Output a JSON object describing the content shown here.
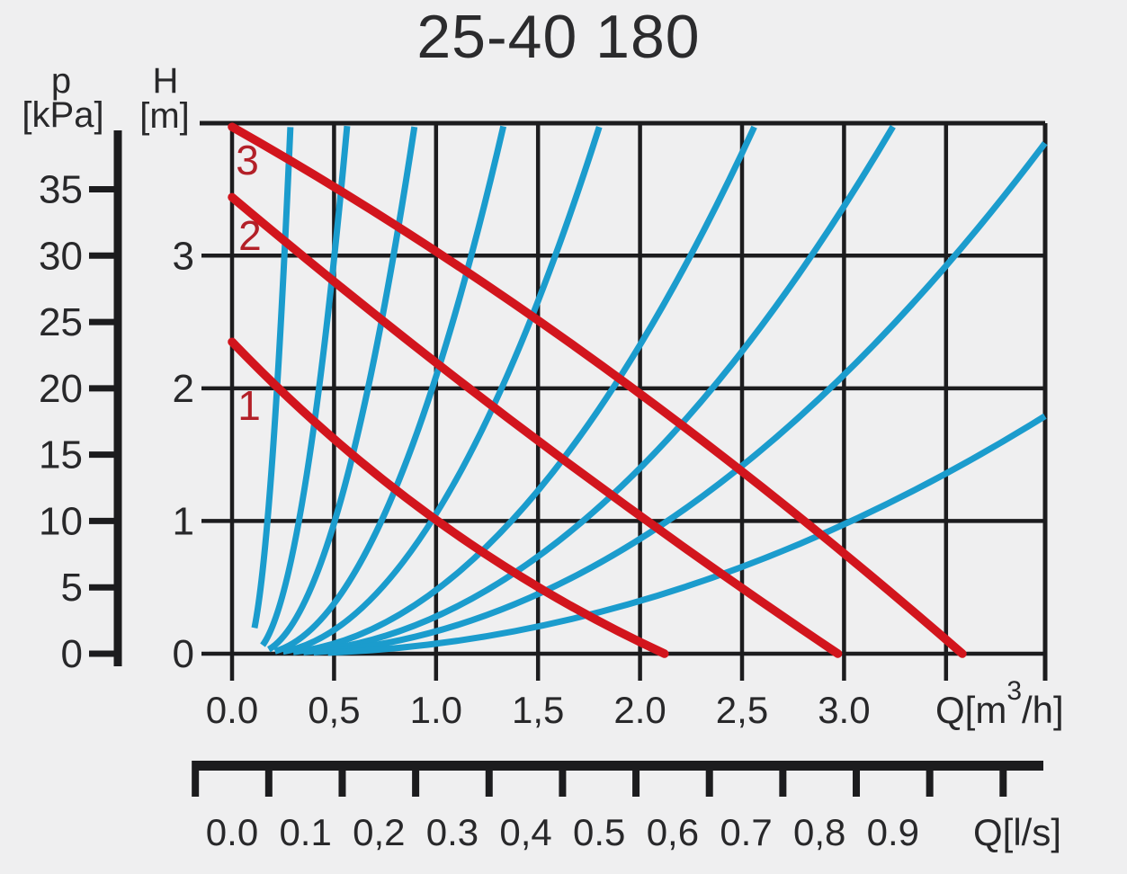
{
  "title": "25-40 180",
  "colors": {
    "background": "#efeff0",
    "grid": "#1c1c1e",
    "text": "#28282a",
    "pump_curve_red": "#d2151d",
    "pump_label_red": "#b32028",
    "system_curve_blue": "#1b9ccd"
  },
  "axes": {
    "pressure": {
      "symbol": "p",
      "unit": "[kPa]",
      "tick_labels": [
        "35",
        "30",
        "25",
        "20",
        "15",
        "10",
        "5",
        "0"
      ],
      "tick_values": [
        35,
        30,
        25,
        20,
        15,
        10,
        5,
        0
      ]
    },
    "head": {
      "symbol": "H",
      "unit": "[m]",
      "tick_labels": [
        "3",
        "2",
        "1",
        "0"
      ],
      "tick_values": [
        3,
        2,
        1,
        0
      ]
    },
    "flow_m3h": {
      "tick_labels": [
        "0.0",
        "0,5",
        "1.0",
        "1,5",
        "2.0",
        "2,5",
        "3.0"
      ],
      "tick_values": [
        0,
        0.5,
        1.0,
        1.5,
        2.0,
        2.5,
        3.0
      ],
      "unit_prefix": "Q[m",
      "unit_sup": "3",
      "unit_suffix": "/h]"
    },
    "flow_ls": {
      "tick_labels": [
        "0.0",
        "0.1",
        "0,2",
        "0.3",
        "0,4",
        "0.5",
        "0,6",
        "0.7",
        "0,8",
        "0.9"
      ],
      "tick_values": [
        0.0,
        0.1,
        0.2,
        0.3,
        0.4,
        0.5,
        0.6,
        0.7,
        0.8,
        0.9
      ],
      "unit": "Q[l/s]"
    }
  },
  "chart_data": {
    "type": "line",
    "title": "25-40 180",
    "xlabel": "Q[m³/h]",
    "xlabel_secondary": "Q[l/s]",
    "ylabel": "H [m]",
    "ylabel_secondary": "p [kPa]",
    "x_range": [
      0,
      3.99
    ],
    "y_range": [
      0,
      4.0
    ],
    "kpa_per_m": 9.81,
    "ls_per_m3h": 0.2778,
    "grid": "on",
    "x_gridlines": [
      0,
      0.5,
      1.0,
      1.5,
      2.0,
      2.5,
      3.0,
      3.5
    ],
    "y_gridlines": [
      0,
      1,
      2,
      3
    ],
    "pump_curves": [
      {
        "speed": "1",
        "points_q_h": [
          [
            0,
            2.35
          ],
          [
            0.45,
            1.67
          ],
          [
            1.0,
            1.0
          ],
          [
            1.77,
            0.34
          ],
          [
            2.12,
            0
          ]
        ],
        "q_start": 0,
        "h_start": 2.35,
        "q_end": 2.12,
        "h_end": 0,
        "control_q_h": [
          0.95,
          0.83
        ],
        "label_q": 0.084,
        "label_h": 1.87
      },
      {
        "speed": "2",
        "points_q_h": [
          [
            0,
            3.44
          ],
          [
            0.44,
            3.0
          ],
          [
            1.16,
            2.0
          ],
          [
            1.97,
            1.0
          ],
          [
            2.97,
            0
          ]
        ],
        "q_start": 0,
        "h_start": 3.44,
        "q_end": 2.97,
        "h_end": 0,
        "control_q_h": [
          1.42,
          1.6
        ],
        "label_q": 0.088,
        "label_h": 3.15
      },
      {
        "speed": "3",
        "points_q_h": [
          [
            0,
            3.97
          ],
          [
            1.0,
            3.0
          ],
          [
            2.0,
            2.0
          ],
          [
            2.81,
            1.0
          ],
          [
            3.58,
            0
          ]
        ],
        "q_start": 0,
        "h_start": 3.97,
        "q_end": 3.58,
        "h_end": 0,
        "control_q_h": [
          1.75,
          2.45
        ],
        "label_q": 0.075,
        "label_h": 3.72
      }
    ],
    "system_curves": [
      {
        "a": 77.7,
        "q0": 0.06,
        "q_start": 0.11,
        "q_end": 0.286
      },
      {
        "a": 17.7,
        "q0": 0.09,
        "q_start": 0.15,
        "q_end": 0.564
      },
      {
        "a": 6.46,
        "q0": 0.11,
        "q_start": 0.18,
        "q_end": 0.894
      },
      {
        "a": 2.76,
        "q0": 0.13,
        "q_start": 0.21,
        "q_end": 1.33
      },
      {
        "a": 1.458,
        "q0": 0.15,
        "q_start": 0.25,
        "q_end": 1.8
      },
      {
        "a": 0.695,
        "q0": 0.17,
        "q_start": 0.3,
        "q_end": 2.56
      },
      {
        "a": 0.427,
        "q0": 0.19,
        "q_start": 0.35,
        "q_end": 3.24
      },
      {
        "a": 0.27,
        "q0": 0.21,
        "q_start": 0.4,
        "q_end": 3.985
      },
      {
        "a": 0.127,
        "q0": 0.23,
        "q_start": 0.47,
        "q_end": 3.985
      }
    ]
  }
}
